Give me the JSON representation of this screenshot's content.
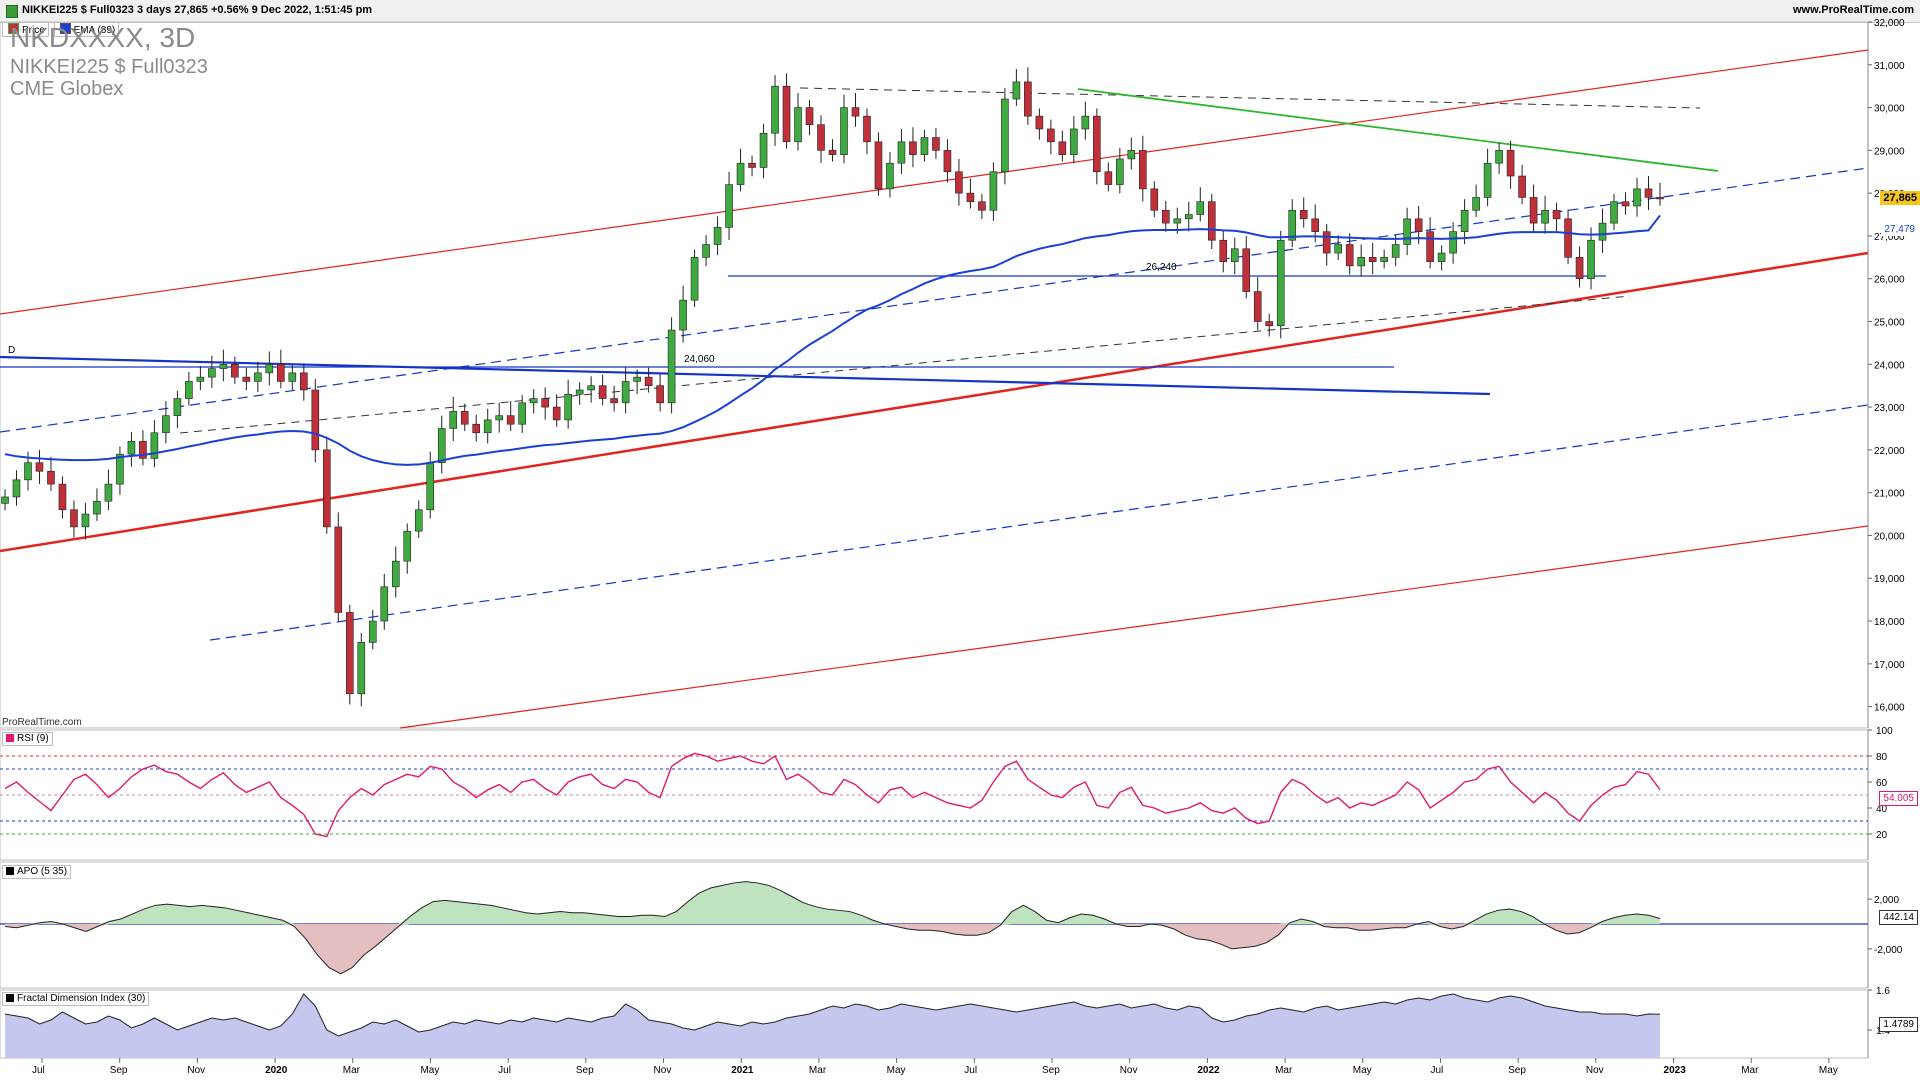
{
  "topbar": {
    "info": "NIKKEI225 $ Full0323 3 days 27,865 +0.56% 9 Dec 2022, 1:51:45 pm",
    "site": "www.ProRealTime.com"
  },
  "legend": {
    "price": "Price",
    "ema": "EMA (89)"
  },
  "header": {
    "symbol_big": "NKDXXXX, 3D",
    "line2": "NIKKEI225 $ Full0323",
    "line3": "CME Globex"
  },
  "watermark": "ProRealTime.com",
  "colors": {
    "up": "#3faa3f",
    "down": "#c0303a",
    "ema": "#1a3fd6",
    "rsi": "#e01a6e",
    "apo_pos": "#bfe3bf",
    "apo_neg": "#e3bfbf",
    "fdi_fill": "#c4c8ef",
    "trend_red": "#e2241f",
    "trend_blue": "#1535c8",
    "trend_green": "#2db52d"
  },
  "chart_data": [
    {
      "type": "line",
      "title": "NKDXXXX, 3D",
      "series": [
        {
          "name": "Price",
          "values": [
            20900,
            21300,
            21700,
            21500,
            21200,
            20600,
            20200,
            20500,
            20800,
            21200,
            21900,
            22200,
            21800,
            22400,
            22800,
            23200,
            23600,
            23700,
            23900,
            24000,
            23700,
            23600,
            23800,
            24000,
            23600,
            23800,
            23400,
            22000,
            20200,
            18200,
            16300,
            17500,
            18000,
            18800,
            19400,
            20100,
            20600,
            21700,
            22500,
            22900,
            22600,
            22400,
            22700,
            22800,
            22600,
            23100,
            23200,
            23000,
            22700,
            23300,
            23400,
            23500,
            23200,
            23100,
            23600,
            23700,
            23500,
            23100,
            24800,
            25500,
            26500,
            26800,
            27200,
            28200,
            28700,
            28600,
            29400,
            30500,
            29200,
            30000,
            29600,
            29000,
            28900,
            30000,
            29800,
            29200,
            28100,
            28700,
            29200,
            28900,
            29300,
            29000,
            28500,
            28000,
            27800,
            27600,
            28500,
            30200,
            30600,
            29800,
            29500,
            29200,
            28900,
            29500,
            29800,
            28500,
            28200,
            28800,
            29000,
            28100,
            27600,
            27300,
            27400,
            27500,
            27800,
            26900,
            26400,
            26700,
            25700,
            25000,
            24900,
            26900,
            27600,
            27400,
            27100,
            26600,
            26800,
            26300,
            26500,
            26400,
            26500,
            26800,
            27400,
            27100,
            26400,
            26600,
            27100,
            27600,
            27900,
            28700,
            29000,
            28400,
            27900,
            27300,
            27600,
            27400,
            26500,
            26000,
            26900,
            27300,
            27800,
            27700,
            28100,
            27900,
            27865
          ]
        },
        {
          "name": "EMA (89)",
          "values": [
            21900,
            21850,
            21820,
            21800,
            21780,
            21770,
            21760,
            21760,
            21770,
            21790,
            21830,
            21860,
            21880,
            21920,
            21970,
            22020,
            22080,
            22130,
            22190,
            22240,
            22290,
            22330,
            22360,
            22400,
            22430,
            22440,
            22430,
            22380,
            22280,
            22150,
            21980,
            21850,
            21760,
            21700,
            21660,
            21650,
            21660,
            21700,
            21750,
            21810,
            21860,
            21890,
            21930,
            21970,
            22000,
            22040,
            22080,
            22110,
            22130,
            22160,
            22190,
            22220,
            22240,
            22260,
            22300,
            22330,
            22360,
            22380,
            22440,
            22530,
            22650,
            22780,
            22920,
            23090,
            23270,
            23440,
            23640,
            23880,
            24060,
            24270,
            24460,
            24620,
            24780,
            24960,
            25130,
            25280,
            25380,
            25500,
            25640,
            25760,
            25890,
            25990,
            26070,
            26130,
            26180,
            26220,
            26280,
            26400,
            26530,
            26620,
            26700,
            26760,
            26810,
            26880,
            26950,
            26990,
            27020,
            27070,
            27110,
            27130,
            27140,
            27140,
            27140,
            27150,
            27160,
            27150,
            27130,
            27120,
            27080,
            27020,
            26970,
            26970,
            26980,
            26990,
            26990,
            26980,
            26970,
            26960,
            26950,
            26940,
            26930,
            26930,
            26940,
            26950,
            26940,
            26930,
            26940,
            26950,
            26970,
            27010,
            27050,
            27080,
            27090,
            27090,
            27090,
            27090,
            27070,
            27040,
            27030,
            27040,
            27060,
            27080,
            27110,
            27130,
            27479
          ]
        }
      ],
      "ylim": [
        15500,
        32000
      ],
      "y_ticks": [
        "16,000",
        "17,000",
        "18,000",
        "19,000",
        "20,000",
        "21,000",
        "22,000",
        "23,000",
        "24,000",
        "25,000",
        "26,000",
        "27,000",
        "28,000",
        "29,000",
        "30,000",
        "31,000",
        "32,000"
      ],
      "x_ticks": [
        "Jul",
        "Sep",
        "Nov",
        "2020",
        "Mar",
        "May",
        "Jul",
        "Sep",
        "Nov",
        "2021",
        "Mar",
        "May",
        "Jul",
        "Sep",
        "Nov",
        "2022",
        "Mar",
        "May",
        "Jul",
        "Sep",
        "Nov",
        "2023",
        "Mar",
        "May"
      ],
      "annotations": [
        "26,240",
        "24,060",
        "D"
      ],
      "last_price": "27,865",
      "ema_last": "27,479",
      "grid": false
    },
    {
      "type": "line",
      "title": "RSI (9)",
      "series": [
        {
          "name": "RSI (9)",
          "values": [
            55,
            60,
            52,
            45,
            38,
            50,
            62,
            66,
            58,
            48,
            55,
            64,
            70,
            73,
            68,
            66,
            60,
            55,
            62,
            67,
            58,
            52,
            56,
            60,
            48,
            42,
            35,
            20,
            18,
            38,
            48,
            55,
            50,
            58,
            62,
            66,
            64,
            72,
            70,
            60,
            55,
            48,
            54,
            58,
            52,
            60,
            62,
            55,
            50,
            60,
            64,
            66,
            58,
            55,
            62,
            60,
            52,
            48,
            72,
            78,
            82,
            80,
            76,
            78,
            80,
            76,
            74,
            80,
            62,
            66,
            60,
            52,
            50,
            62,
            58,
            50,
            44,
            54,
            56,
            48,
            52,
            48,
            44,
            42,
            40,
            46,
            60,
            72,
            76,
            62,
            56,
            50,
            48,
            56,
            60,
            42,
            40,
            52,
            56,
            42,
            40,
            36,
            38,
            40,
            44,
            38,
            36,
            40,
            32,
            28,
            30,
            52,
            62,
            58,
            50,
            44,
            48,
            40,
            44,
            42,
            46,
            50,
            60,
            54,
            40,
            46,
            52,
            60,
            62,
            70,
            72,
            60,
            52,
            44,
            52,
            46,
            36,
            30,
            42,
            50,
            56,
            58,
            68,
            66,
            54
          ]
        }
      ],
      "ylim": [
        0,
        100
      ],
      "y_ticks": [
        "20",
        "40",
        "60",
        "80",
        "100"
      ],
      "last_value": "54.005"
    },
    {
      "type": "area",
      "title": "APO (5 35)",
      "series": [
        {
          "name": "APO (5 35)",
          "values": [
            -200,
            -300,
            -100,
            100,
            200,
            0,
            -300,
            -600,
            -200,
            200,
            400,
            800,
            1200,
            1500,
            1600,
            1500,
            1400,
            1500,
            1400,
            1300,
            1100,
            900,
            700,
            500,
            300,
            -200,
            -1200,
            -2500,
            -3500,
            -4000,
            -3500,
            -2500,
            -1800,
            -1000,
            -200,
            600,
            1300,
            1800,
            1900,
            1800,
            1700,
            1600,
            1500,
            1300,
            1100,
            900,
            800,
            900,
            1000,
            900,
            900,
            800,
            700,
            600,
            600,
            700,
            700,
            600,
            1000,
            1800,
            2500,
            2900,
            3100,
            3300,
            3400,
            3300,
            3100,
            2700,
            2200,
            1700,
            1400,
            1200,
            1100,
            1000,
            700,
            300,
            0,
            -200,
            -400,
            -500,
            -500,
            -600,
            -800,
            -900,
            -900,
            -700,
            -100,
            1000,
            1500,
            1000,
            300,
            100,
            500,
            800,
            700,
            400,
            0,
            -200,
            -200,
            0,
            -100,
            -400,
            -900,
            -1200,
            -1300,
            -1600,
            -2000,
            -1900,
            -1800,
            -1500,
            -900,
            100,
            400,
            200,
            -200,
            -300,
            -300,
            -500,
            -500,
            -400,
            -300,
            -300,
            0,
            200,
            -200,
            -400,
            -200,
            300,
            800,
            1100,
            1200,
            1000,
            600,
            0,
            -500,
            -800,
            -700,
            -300,
            200,
            500,
            700,
            800,
            700,
            442
          ]
        }
      ],
      "y_ticks": [
        "-2,000",
        "2,000"
      ],
      "last_value": "442.14"
    },
    {
      "type": "area",
      "title": "Fractal Dimension Index (30)",
      "series": [
        {
          "name": "Fractal Dimension Index (30)",
          "values": [
            1.48,
            1.47,
            1.46,
            1.43,
            1.45,
            1.49,
            1.46,
            1.43,
            1.44,
            1.47,
            1.45,
            1.41,
            1.43,
            1.46,
            1.43,
            1.4,
            1.42,
            1.44,
            1.46,
            1.45,
            1.46,
            1.44,
            1.42,
            1.4,
            1.42,
            1.48,
            1.58,
            1.52,
            1.4,
            1.37,
            1.39,
            1.41,
            1.44,
            1.43,
            1.45,
            1.42,
            1.39,
            1.4,
            1.42,
            1.44,
            1.43,
            1.45,
            1.44,
            1.43,
            1.45,
            1.44,
            1.46,
            1.45,
            1.44,
            1.46,
            1.45,
            1.44,
            1.46,
            1.47,
            1.53,
            1.5,
            1.45,
            1.44,
            1.43,
            1.41,
            1.4,
            1.42,
            1.44,
            1.43,
            1.42,
            1.44,
            1.43,
            1.44,
            1.46,
            1.47,
            1.48,
            1.5,
            1.52,
            1.51,
            1.53,
            1.52,
            1.5,
            1.51,
            1.53,
            1.52,
            1.51,
            1.5,
            1.51,
            1.52,
            1.53,
            1.52,
            1.51,
            1.5,
            1.49,
            1.5,
            1.51,
            1.52,
            1.53,
            1.54,
            1.52,
            1.51,
            1.52,
            1.53,
            1.51,
            1.52,
            1.53,
            1.51,
            1.5,
            1.52,
            1.51,
            1.46,
            1.44,
            1.45,
            1.47,
            1.48,
            1.5,
            1.51,
            1.5,
            1.49,
            1.51,
            1.52,
            1.5,
            1.51,
            1.52,
            1.53,
            1.54,
            1.53,
            1.55,
            1.56,
            1.55,
            1.57,
            1.58,
            1.56,
            1.55,
            1.54,
            1.56,
            1.57,
            1.56,
            1.54,
            1.52,
            1.51,
            1.5,
            1.49,
            1.49,
            1.48,
            1.48,
            1.48,
            1.47,
            1.48,
            1.4789
          ]
        }
      ],
      "y_ticks": [
        "1.4",
        "1.6"
      ],
      "last_value": "1.4789"
    }
  ]
}
